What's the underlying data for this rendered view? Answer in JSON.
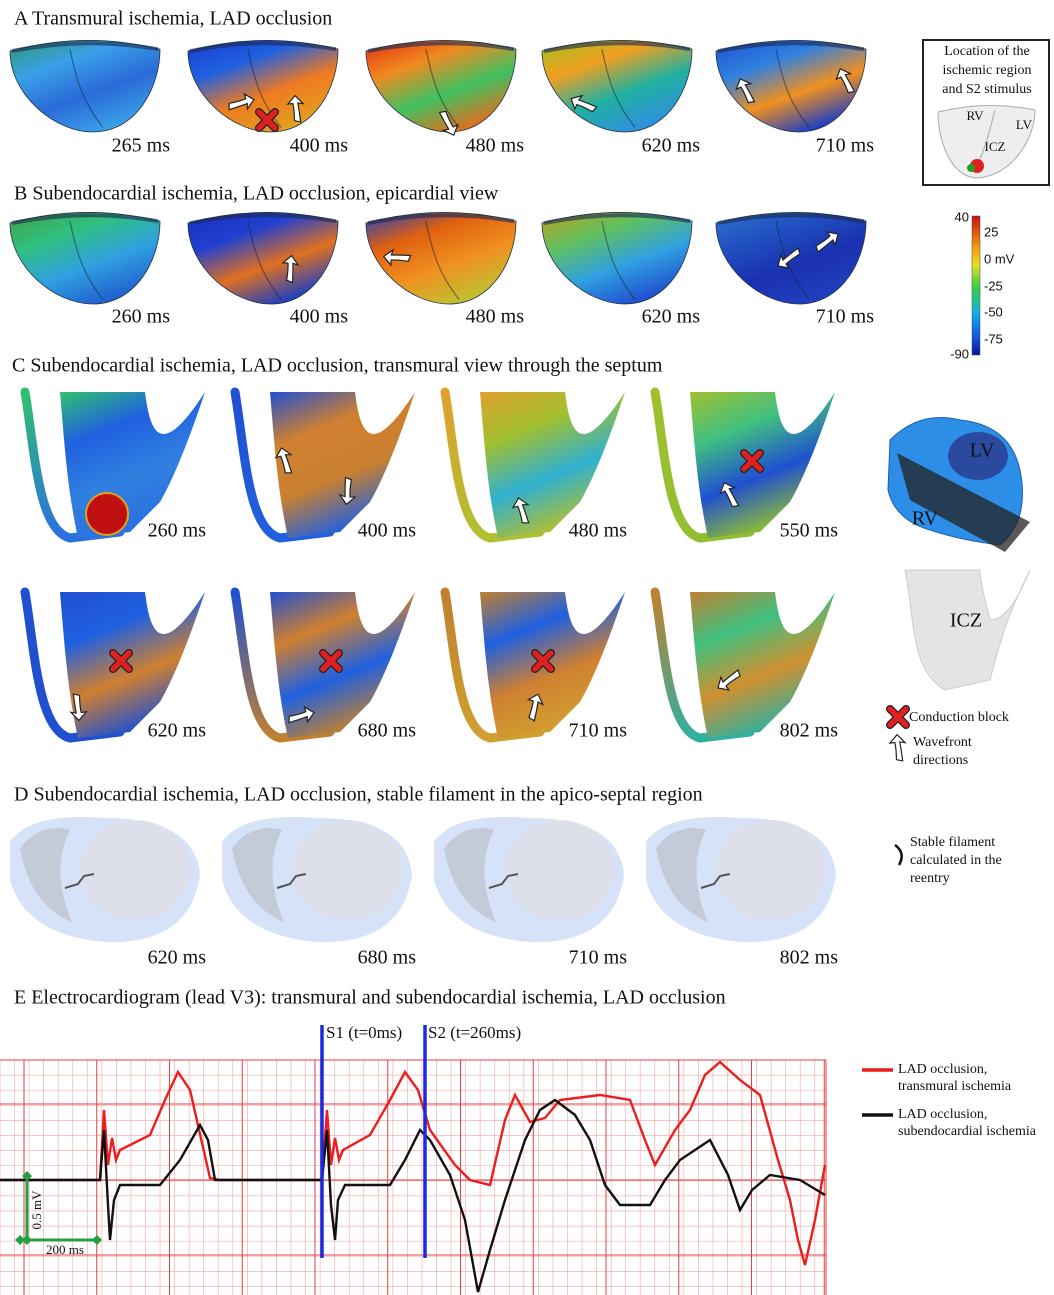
{
  "panels": {
    "a": {
      "title": "A Transmural ischemia, LAD occlusion",
      "times": [
        "265 ms",
        "400 ms",
        "480 ms",
        "620 ms",
        "710 ms"
      ]
    },
    "b": {
      "title": "B Subendocardial ischemia, LAD occlusion, epicardial view",
      "times": [
        "260 ms",
        "400 ms",
        "480 ms",
        "620 ms",
        "710 ms"
      ]
    },
    "c": {
      "title": "C Subendocardial ischemia, LAD occlusion, transmural view through the septum",
      "times_top": [
        "260 ms",
        "400 ms",
        "480 ms",
        "550 ms"
      ],
      "times_bottom": [
        "620 ms",
        "680 ms",
        "710 ms",
        "802 ms"
      ]
    },
    "d": {
      "title": "D Subendocardial ischemia, LAD occlusion, stable filament in the apico-septal region",
      "times": [
        "620 ms",
        "680 ms",
        "710 ms",
        "802 ms"
      ]
    },
    "e": {
      "title": "E Electrocardiogram (lead V3): transmural and subendocardial ischemia, LAD occlusion",
      "s1": "S1 (t=0ms)",
      "s2": "S2 (t=260ms)",
      "scale_v": "0.5 mV",
      "scale_t": "200 ms",
      "legend": [
        {
          "lines": [
            "LAD occlusion,",
            "transmural ischemia"
          ]
        },
        {
          "lines": [
            "LAD occlusion,",
            "subendocardial ischemia"
          ]
        }
      ]
    }
  },
  "inset": {
    "lines": [
      "Location of the",
      "ischemic region",
      "and S2 stimulus"
    ],
    "labels": [
      "RV",
      "LV",
      "ICZ"
    ]
  },
  "colorbar": {
    "labels": [
      "40",
      "25",
      "0 mV",
      "-25",
      "-50",
      "-75",
      "-90"
    ]
  },
  "side_c": {
    "lv": "LV",
    "rv": "RV",
    "icz": "ICZ",
    "legend": [
      {
        "lines": [
          "Conduction block"
        ]
      },
      {
        "lines": [
          "Wavefront",
          "directions"
        ]
      }
    ]
  },
  "side_d": {
    "lines": [
      "Stable filament",
      "calculated in the",
      "reentry"
    ]
  }
}
